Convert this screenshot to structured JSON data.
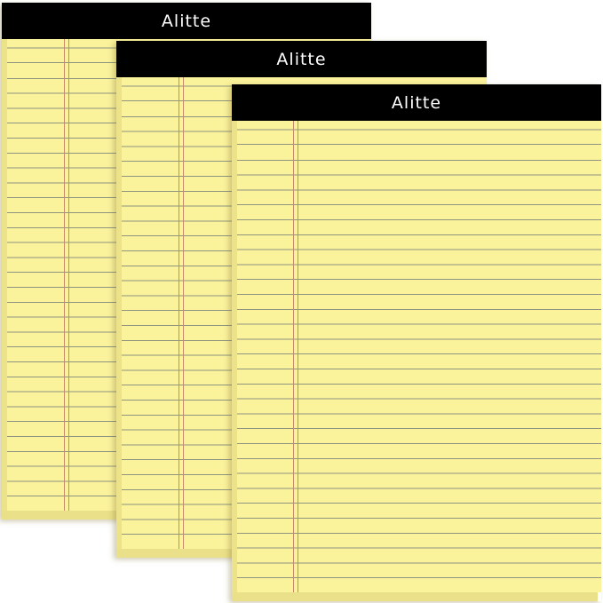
{
  "product": {
    "brand": "Alitte",
    "pads": [
      {
        "brand": "Alitte"
      },
      {
        "brand": "Alitte"
      },
      {
        "brand": "Alitte"
      }
    ],
    "colors": {
      "paper": "#fbf29c",
      "header": "#000000",
      "rule": "#8e9480",
      "margin_rule": "#c98a6a"
    }
  }
}
